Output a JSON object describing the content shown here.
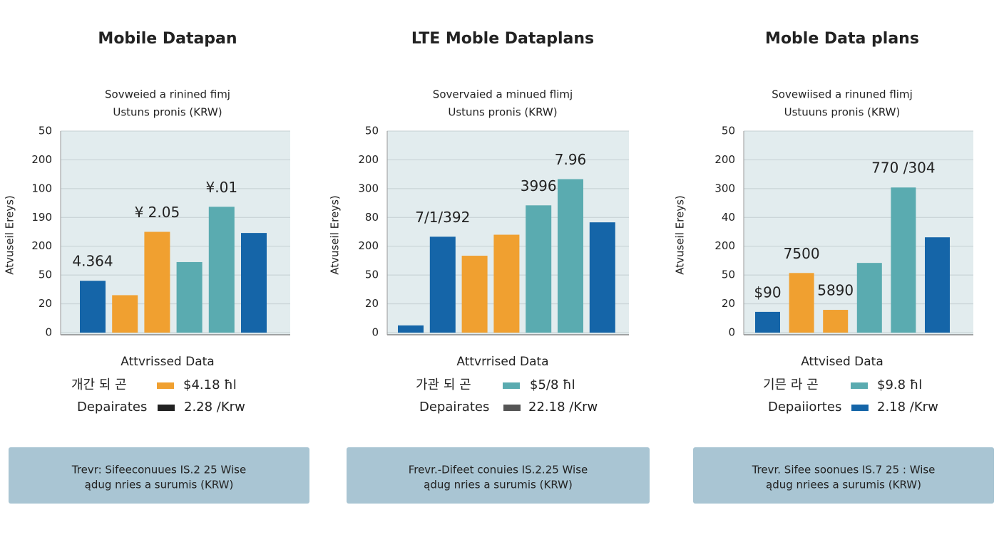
{
  "chart_data": [
    {
      "type": "bar",
      "title": "Mobile Datapan",
      "subtitle": [
        "Sovweied a rinined fimj",
        "Ustuns pronis (KRW)"
      ],
      "y_label": "Atvuseil Ereys)",
      "x_label": "Attvrissed Data",
      "categories": [
        null,
        null,
        null,
        null,
        null,
        null
      ],
      "values": [
        1.8,
        1.3,
        3.5,
        2.45,
        4.37,
        3.46
      ],
      "colors": [
        "#1565a8",
        "#f0a030",
        "#f0a030",
        "#5aabb0",
        "#5aabb0",
        "#1565a8"
      ],
      "annotations": [
        "4.364",
        null,
        "¥ 2.05",
        null,
        "¥.01",
        null
      ],
      "ylim": [
        0,
        7
      ],
      "yticks": [
        {
          "value": 0,
          "label": "0"
        },
        {
          "value": 1,
          "label": "20"
        },
        {
          "value": 2,
          "label": "50"
        },
        {
          "value": 3,
          "label": "200"
        },
        {
          "value": 4,
          "label": "190"
        },
        {
          "value": 5,
          "label": "100"
        },
        {
          "value": 6,
          "label": "200"
        },
        {
          "value": 7,
          "label": "50"
        }
      ],
      "grid": true,
      "legend_rows": [
        {
          "label": "개간 되 곤",
          "color": "#f0a030",
          "value": "$4.18 ħl"
        },
        {
          "label": "Depairates",
          "color": "#222222",
          "value": "2.28 /Krw"
        }
      ],
      "note": [
        "Trevr: Sifeeconuues IS.2 25 Wise",
        "ądug nries a surumis (KRW)"
      ]
    },
    {
      "type": "bar",
      "title": "LTE Moble Dataplans",
      "subtitle": [
        "Sovervaied a minued flimj",
        "Ustuns pronis (KRW)"
      ],
      "y_label": "Atvuseil Ereys)",
      "x_label": "Attvrrised Data",
      "categories": [
        null,
        null,
        null,
        null,
        null,
        null,
        null
      ],
      "values": [
        0.25,
        3.33,
        2.67,
        3.4,
        4.42,
        5.33,
        3.83
      ],
      "colors": [
        "#1565a8",
        "#1565a8",
        "#f0a030",
        "#f0a030",
        "#5aabb0",
        "#5aabb0",
        "#1565a8"
      ],
      "annotations": [
        null,
        "7/1/392",
        null,
        null,
        "3996",
        "7.96",
        null
      ],
      "ylim": [
        0,
        7
      ],
      "yticks": [
        {
          "value": 0,
          "label": "0"
        },
        {
          "value": 1,
          "label": "20"
        },
        {
          "value": 2,
          "label": "50"
        },
        {
          "value": 3,
          "label": "200"
        },
        {
          "value": 4,
          "label": "80"
        },
        {
          "value": 5,
          "label": "300"
        },
        {
          "value": 6,
          "label": "200"
        },
        {
          "value": 7,
          "label": "50"
        }
      ],
      "grid": true,
      "legend_rows": [
        {
          "label": "가관 되 곤",
          "color": "#5aabb0",
          "value": "$5/8 ħl"
        },
        {
          "label": "Depairates",
          "color": "#555555",
          "value": "22.18 /Krw"
        }
      ],
      "note": [
        "Frevr.-Difeet conuies IS.2.25 Wise",
        "ądug nries a surumis (KRW)"
      ]
    },
    {
      "type": "bar",
      "title": "Moble Data plans",
      "subtitle": [
        "Sovewiised a rinuned flimj",
        "Ustuuns pronis (KRW)"
      ],
      "y_label": "Atvuseil Ereys)",
      "x_label": "Attvised Data",
      "categories": [
        null,
        null,
        null,
        null,
        null,
        null
      ],
      "values": [
        0.72,
        2.07,
        0.79,
        2.42,
        5.04,
        3.31
      ],
      "colors": [
        "#1565a8",
        "#f0a030",
        "#f0a030",
        "#5aabb0",
        "#5aabb0",
        "#1565a8"
      ],
      "annotations": [
        "$90",
        "7500",
        "5890",
        null,
        "770 /304",
        null
      ],
      "ylim": [
        0,
        7
      ],
      "yticks": [
        {
          "value": 0,
          "label": "0"
        },
        {
          "value": 1,
          "label": "20"
        },
        {
          "value": 2,
          "label": "50"
        },
        {
          "value": 3,
          "label": "200"
        },
        {
          "value": 4,
          "label": "40"
        },
        {
          "value": 5,
          "label": "300"
        },
        {
          "value": 6,
          "label": "200"
        },
        {
          "value": 7,
          "label": "50"
        }
      ],
      "grid": true,
      "legend_rows": [
        {
          "label": "기믄 라 곤",
          "color": "#5aabb0",
          "value": "$9.8 ħl"
        },
        {
          "label": "Depaiiortes",
          "color": "#1565a8",
          "value": "2.18 /Krw"
        }
      ],
      "note": [
        "Trevr. Sifee soonues IS.7 25 : Wise",
        "ądug nriees a surumis (KRW)"
      ]
    }
  ]
}
